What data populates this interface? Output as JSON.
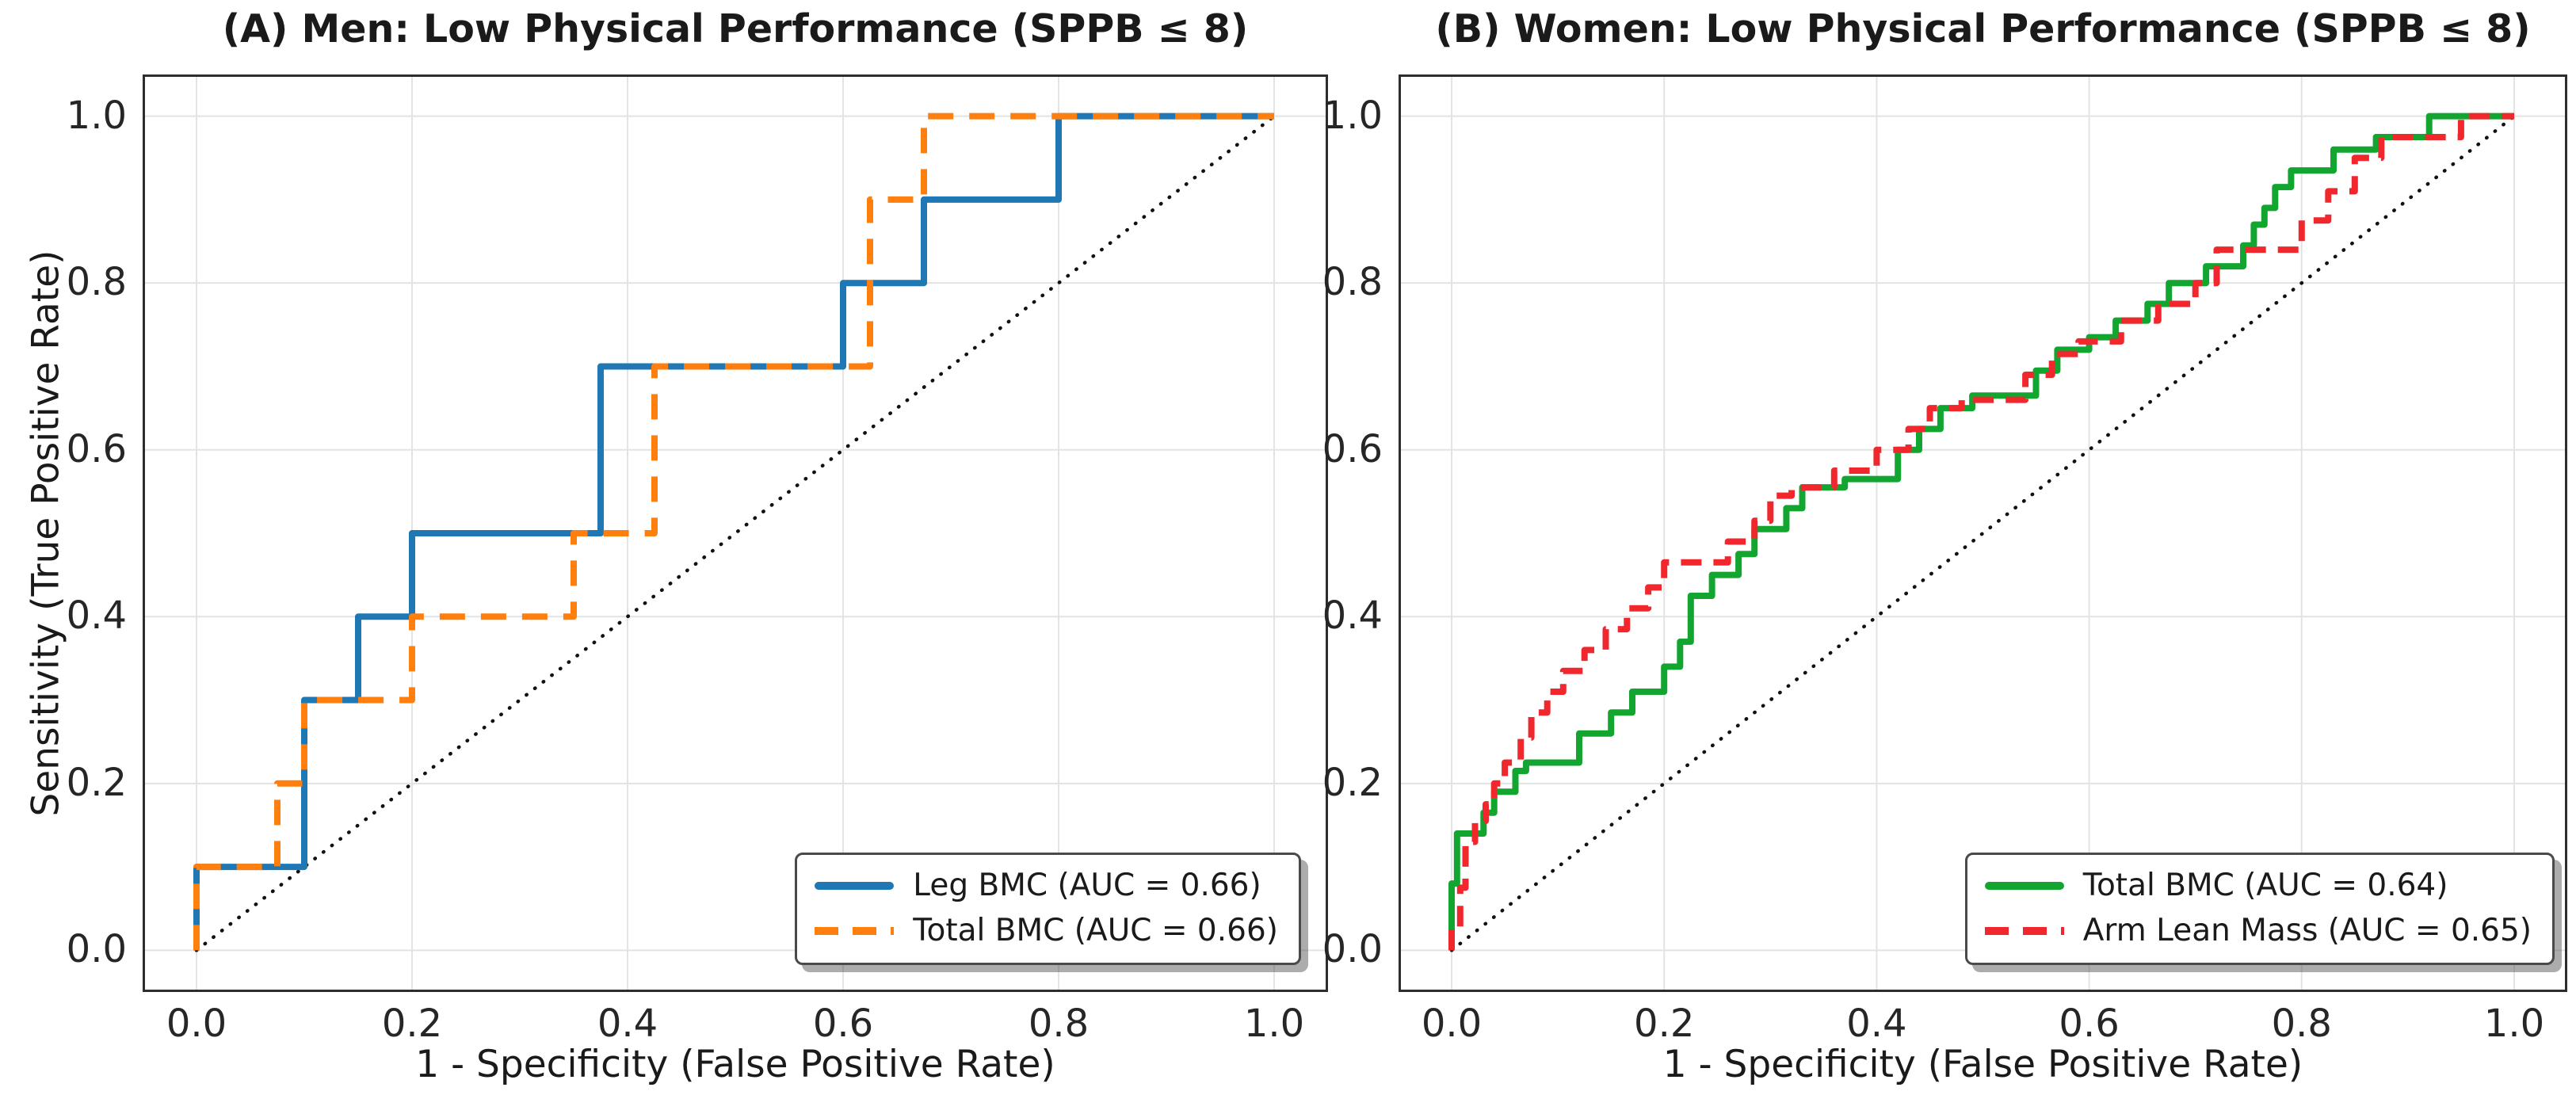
{
  "figure": {
    "background_color": "#ffffff",
    "grid_color": "#e3e3e3",
    "spine_color": "#2d2d2d",
    "diagonal_line": "black dotted chance line from (0,0) to (1,1)"
  },
  "chart_data": [
    {
      "type": "line",
      "panel": "A",
      "title": "(A) Men: Low Physical Performance (SPPB ≤ 8)",
      "xlabel": "1 - Specificity (False Positive Rate)",
      "ylabel": "Sensitivity (True Positive Rate)",
      "xlim": [
        -0.05,
        1.05
      ],
      "ylim": [
        -0.05,
        1.05
      ],
      "x_ticks": [
        0,
        0.2,
        0.4,
        0.6,
        0.8,
        1.0
      ],
      "x_tick_labels": [
        "0.0",
        "0.2",
        "0.4",
        "0.6",
        "0.8",
        "1.0"
      ],
      "y_ticks": [
        0,
        0.2,
        0.4,
        0.6,
        0.8,
        1.0
      ],
      "y_tick_labels": [
        "0.0",
        "0.2",
        "0.4",
        "0.6",
        "0.8",
        "1.0"
      ],
      "grid": true,
      "diagonal_reference_line": true,
      "legend_position": "lower right",
      "series": [
        {
          "name": "Leg BMC",
          "auc": 0.66,
          "legend_label": "Leg BMC (AUC = 0.66)",
          "color": "#1f77b4",
          "style": "solid",
          "dash_pattern": null,
          "x": [
            0,
            0,
            0.1,
            0.1,
            0.15,
            0.15,
            0.2,
            0.2,
            0.375,
            0.375,
            0.6,
            0.6,
            0.675,
            0.675,
            0.8,
            0.8,
            1.0
          ],
          "y": [
            0,
            0.1,
            0.1,
            0.3,
            0.3,
            0.4,
            0.4,
            0.5,
            0.5,
            0.7,
            0.7,
            0.8,
            0.8,
            0.9,
            0.9,
            1.0,
            1.0
          ]
        },
        {
          "name": "Total BMC",
          "auc": 0.66,
          "legend_label": "Total BMC (AUC = 0.66)",
          "color": "#ff7f0e",
          "style": "dashed",
          "dash_pattern": "32 20",
          "x": [
            0,
            0,
            0.075,
            0.075,
            0.1,
            0.1,
            0.2,
            0.2,
            0.35,
            0.35,
            0.425,
            0.425,
            0.625,
            0.625,
            0.675,
            0.675,
            1.0
          ],
          "y": [
            0,
            0.1,
            0.1,
            0.2,
            0.2,
            0.3,
            0.3,
            0.4,
            0.4,
            0.5,
            0.5,
            0.7,
            0.7,
            0.9,
            0.9,
            1.0,
            1.0
          ]
        }
      ]
    },
    {
      "type": "line",
      "panel": "B",
      "title": "(B) Women: Low Physical Performance (SPPB ≤ 8)",
      "xlabel": "1 - Specificity (False Positive Rate)",
      "ylabel": "",
      "xlim": [
        -0.05,
        1.05
      ],
      "ylim": [
        -0.05,
        1.05
      ],
      "x_ticks": [
        0,
        0.2,
        0.4,
        0.6,
        0.8,
        1.0
      ],
      "x_tick_labels": [
        "0.0",
        "0.2",
        "0.4",
        "0.6",
        "0.8",
        "1.0"
      ],
      "y_ticks": [
        0,
        0.2,
        0.4,
        0.6,
        0.8,
        1.0
      ],
      "y_tick_labels": [
        "0.0",
        "0.2",
        "0.4",
        "0.6",
        "0.8",
        "1.0"
      ],
      "grid": true,
      "diagonal_reference_line": true,
      "legend_position": "lower right",
      "series": [
        {
          "name": "Total BMC",
          "auc": 0.64,
          "legend_label": "Total BMC (AUC = 0.64)",
          "color": "#12a630",
          "style": "solid",
          "dash_pattern": null,
          "x": [
            0,
            0,
            0.005,
            0.005,
            0.03,
            0.03,
            0.04,
            0.04,
            0.06,
            0.06,
            0.07,
            0.07,
            0.12,
            0.12,
            0.15,
            0.15,
            0.17,
            0.17,
            0.2,
            0.2,
            0.215,
            0.215,
            0.225,
            0.225,
            0.245,
            0.245,
            0.27,
            0.27,
            0.285,
            0.285,
            0.315,
            0.315,
            0.33,
            0.33,
            0.37,
            0.37,
            0.42,
            0.42,
            0.44,
            0.44,
            0.46,
            0.46,
            0.49,
            0.49,
            0.55,
            0.55,
            0.57,
            0.57,
            0.6,
            0.6,
            0.625,
            0.625,
            0.655,
            0.655,
            0.675,
            0.675,
            0.71,
            0.71,
            0.745,
            0.745,
            0.755,
            0.755,
            0.765,
            0.765,
            0.775,
            0.775,
            0.79,
            0.79,
            0.83,
            0.83,
            0.87,
            0.87,
            0.92,
            0.92,
            1.0
          ],
          "y": [
            0,
            0.08,
            0.08,
            0.14,
            0.14,
            0.165,
            0.165,
            0.19,
            0.19,
            0.215,
            0.215,
            0.225,
            0.225,
            0.26,
            0.26,
            0.285,
            0.285,
            0.31,
            0.31,
            0.34,
            0.34,
            0.37,
            0.37,
            0.425,
            0.425,
            0.45,
            0.45,
            0.475,
            0.475,
            0.505,
            0.505,
            0.53,
            0.53,
            0.555,
            0.555,
            0.565,
            0.565,
            0.6,
            0.6,
            0.625,
            0.625,
            0.65,
            0.65,
            0.665,
            0.665,
            0.695,
            0.695,
            0.72,
            0.72,
            0.735,
            0.735,
            0.755,
            0.755,
            0.775,
            0.775,
            0.8,
            0.8,
            0.82,
            0.82,
            0.845,
            0.845,
            0.87,
            0.87,
            0.89,
            0.89,
            0.915,
            0.915,
            0.935,
            0.935,
            0.96,
            0.96,
            0.975,
            0.975,
            1.0,
            1.0
          ]
        },
        {
          "name": "Arm Lean Mass",
          "auc": 0.65,
          "legend_label": "Arm Lean Mass (AUC = 0.65)",
          "color": "#f0282e",
          "style": "dashed",
          "dash_pattern": "26 15",
          "x": [
            0,
            0,
            0.008,
            0.008,
            0.013,
            0.013,
            0.022,
            0.022,
            0.032,
            0.032,
            0.04,
            0.04,
            0.05,
            0.05,
            0.065,
            0.065,
            0.075,
            0.075,
            0.09,
            0.09,
            0.105,
            0.105,
            0.125,
            0.125,
            0.145,
            0.145,
            0.165,
            0.165,
            0.185,
            0.185,
            0.2,
            0.2,
            0.26,
            0.26,
            0.285,
            0.285,
            0.3,
            0.3,
            0.32,
            0.32,
            0.36,
            0.36,
            0.4,
            0.4,
            0.43,
            0.43,
            0.45,
            0.45,
            0.48,
            0.48,
            0.54,
            0.54,
            0.565,
            0.565,
            0.59,
            0.59,
            0.63,
            0.63,
            0.665,
            0.665,
            0.7,
            0.7,
            0.72,
            0.72,
            0.8,
            0.8,
            0.825,
            0.825,
            0.85,
            0.85,
            0.875,
            0.875,
            0.95,
            0.95,
            1.0
          ],
          "y": [
            0,
            0.025,
            0.025,
            0.075,
            0.075,
            0.13,
            0.13,
            0.155,
            0.155,
            0.175,
            0.175,
            0.2,
            0.2,
            0.225,
            0.225,
            0.255,
            0.255,
            0.285,
            0.285,
            0.31,
            0.31,
            0.335,
            0.335,
            0.36,
            0.36,
            0.385,
            0.385,
            0.41,
            0.41,
            0.435,
            0.435,
            0.465,
            0.465,
            0.49,
            0.49,
            0.515,
            0.515,
            0.545,
            0.545,
            0.555,
            0.555,
            0.575,
            0.575,
            0.6,
            0.6,
            0.625,
            0.625,
            0.65,
            0.65,
            0.66,
            0.66,
            0.69,
            0.69,
            0.715,
            0.715,
            0.73,
            0.73,
            0.755,
            0.755,
            0.775,
            0.775,
            0.8,
            0.8,
            0.84,
            0.84,
            0.875,
            0.875,
            0.91,
            0.91,
            0.95,
            0.95,
            0.975,
            0.975,
            1.0,
            1.0
          ]
        }
      ]
    }
  ]
}
